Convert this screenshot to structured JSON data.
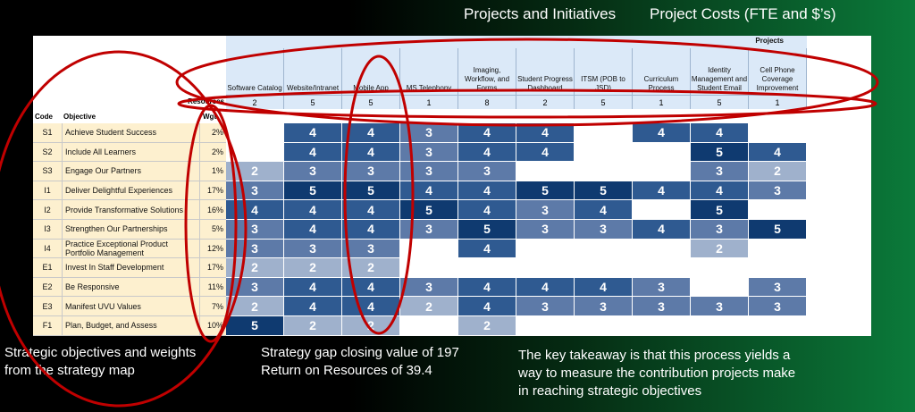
{
  "captions": {
    "projects_title": "Projects and Initiatives",
    "costs_title": "Project Costs (FTE and $’s)"
  },
  "sheet": {
    "projects_band_label": "Projects",
    "resources_label": "Resources",
    "code_header": "Code",
    "objective_header": "Objective",
    "weight_header": "Wgt.",
    "projects": [
      {
        "name": "Software Catalog",
        "resources": "2"
      },
      {
        "name": "Website/Intranet",
        "resources": "5"
      },
      {
        "name": "Mobile App",
        "resources": "5"
      },
      {
        "name": "MS Telephony",
        "resources": "1"
      },
      {
        "name": "Imaging, Workflow, and Forms",
        "resources": "8"
      },
      {
        "name": "Student Progress Dashboard",
        "resources": "2"
      },
      {
        "name": "ITSM (POB to JSD)",
        "resources": "5"
      },
      {
        "name": "Curriculum Process",
        "resources": "1"
      },
      {
        "name": "Identity Management and Student Email",
        "resources": "5"
      },
      {
        "name": "Cell Phone Coverage Improvement",
        "resources": "1"
      }
    ],
    "rows": [
      {
        "code": "S1",
        "objective": "Achieve Student Success",
        "weight": "2%",
        "scores": [
          "",
          "4",
          "4",
          "3",
          "4",
          "4",
          "",
          "4",
          "4",
          ""
        ]
      },
      {
        "code": "S2",
        "objective": "Include All Learners",
        "weight": "2%",
        "scores": [
          "",
          "4",
          "4",
          "3",
          "4",
          "4",
          "",
          "",
          "5",
          "4"
        ]
      },
      {
        "code": "S3",
        "objective": "Engage Our Partners",
        "weight": "1%",
        "scores": [
          "2",
          "3",
          "3",
          "3",
          "3",
          "",
          "",
          "",
          "3",
          "2"
        ]
      },
      {
        "code": "I1",
        "objective": "Deliver Delightful Experiences",
        "weight": "17%",
        "scores": [
          "3",
          "5",
          "5",
          "4",
          "4",
          "5",
          "5",
          "4",
          "4",
          "3"
        ]
      },
      {
        "code": "I2",
        "objective": "Provide Transformative Solutions",
        "weight": "16%",
        "scores": [
          "4",
          "4",
          "4",
          "5",
          "4",
          "3",
          "4",
          "",
          "5",
          ""
        ]
      },
      {
        "code": "I3",
        "objective": "Strengthen Our Partnerships",
        "weight": "5%",
        "scores": [
          "3",
          "4",
          "4",
          "3",
          "5",
          "3",
          "3",
          "4",
          "3",
          "5"
        ]
      },
      {
        "code": "I4",
        "objective": "Practice Exceptional Product Portfolio Management",
        "weight": "12%",
        "scores": [
          "3",
          "3",
          "3",
          "",
          "4",
          "",
          "",
          "",
          "2",
          ""
        ]
      },
      {
        "code": "E1",
        "objective": "Invest In Staff Development",
        "weight": "17%",
        "scores": [
          "2",
          "2",
          "2",
          "",
          "",
          "",
          "",
          "",
          "",
          ""
        ]
      },
      {
        "code": "E2",
        "objective": "Be Responsive",
        "weight": "11%",
        "scores": [
          "3",
          "4",
          "4",
          "3",
          "4",
          "4",
          "4",
          "3",
          "",
          "3"
        ]
      },
      {
        "code": "E3",
        "objective": "Manifest UVU Values",
        "weight": "7%",
        "scores": [
          "2",
          "4",
          "4",
          "2",
          "4",
          "3",
          "3",
          "3",
          "3",
          "3"
        ]
      },
      {
        "code": "F1",
        "objective": "Plan, Budget, and Assess",
        "weight": "10%",
        "scores": [
          "5",
          "2",
          "2",
          "",
          "2",
          "",
          "",
          "",
          "",
          ""
        ]
      }
    ]
  },
  "annotations": {
    "left": [
      "Strategic objectives and weights",
      "from the strategy map"
    ],
    "middle": [
      "Strategy gap closing value of 197",
      "Return on Resources of 39.4"
    ],
    "right": [
      "The key takeaway is that this process yields a",
      "way to measure the contribution projects make",
      "in reaching strategic objectives"
    ]
  },
  "colors": {
    "background_left": "#000000",
    "background_right": "#0b7a3a",
    "header_fill": "#dbe9f8",
    "objective_fill": "#fdf0cf",
    "score_2": "#9fb1cc",
    "score_3": "#5d7aa8",
    "score_4": "#2f5a91",
    "score_5": "#0f3a70",
    "ellipse_stroke": "#c00000"
  }
}
